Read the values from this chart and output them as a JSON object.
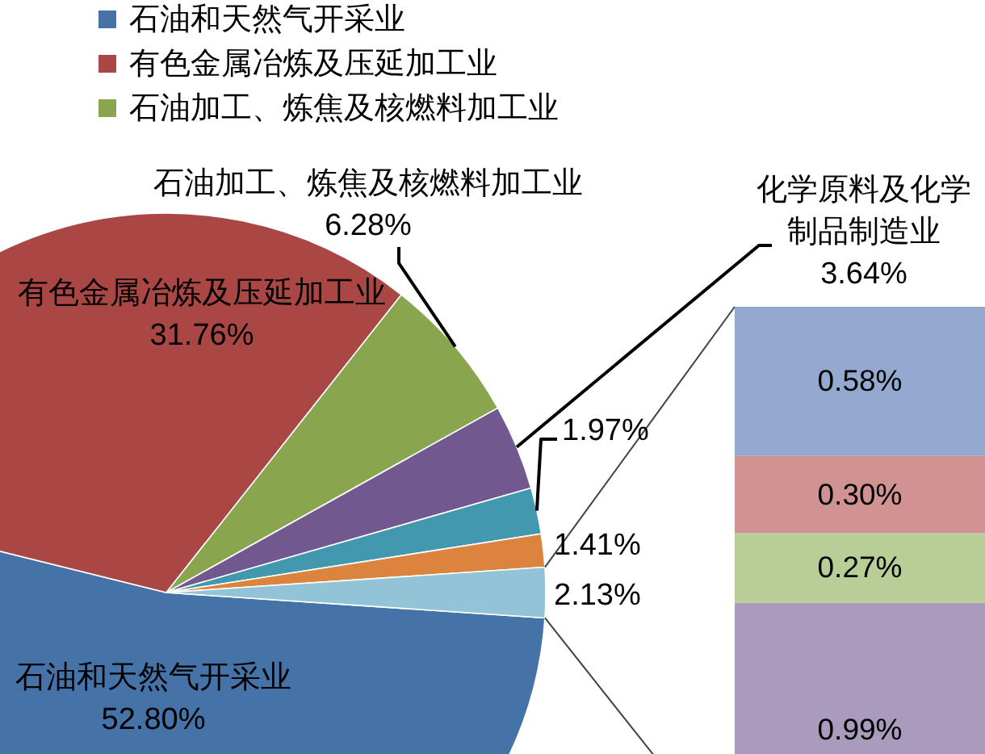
{
  "chart_data": [
    {
      "type": "pie",
      "categories": [
        "石油和天然气开采业",
        "有色金属冶炼及压延加工业",
        "石油加工、炼焦及核燃料加工业",
        "化学原料及化学制品制造业",
        null,
        null,
        null
      ],
      "values": [
        52.8,
        31.76,
        6.28,
        3.64,
        1.97,
        1.41,
        2.13
      ],
      "value_labels": [
        "52.80%",
        "31.76%",
        "6.28%",
        "3.64%",
        "1.97%",
        "1.41%",
        "2.13%"
      ],
      "colors": [
        "#4572a7",
        "#aa4643",
        "#89a54e",
        "#71588f",
        "#4198af",
        "#db843d",
        "#93c3d7"
      ],
      "legend": "top right"
    },
    {
      "type": "bar",
      "stacked": true,
      "categories": [
        null
      ],
      "series": [
        {
          "color": "#a99bbd",
          "values": [
            0.99
          ],
          "value_labels": [
            "0.99%"
          ]
        },
        {
          "color": "#b9cd96",
          "values": [
            0.27
          ],
          "value_labels": [
            "0.27%"
          ]
        },
        {
          "color": "#d19392",
          "values": [
            0.3
          ],
          "value_labels": [
            "0.30%"
          ]
        },
        {
          "color": "#93a9cf",
          "values": [
            0.58
          ],
          "value_labels": [
            "0.58%"
          ]
        }
      ]
    }
  ]
}
